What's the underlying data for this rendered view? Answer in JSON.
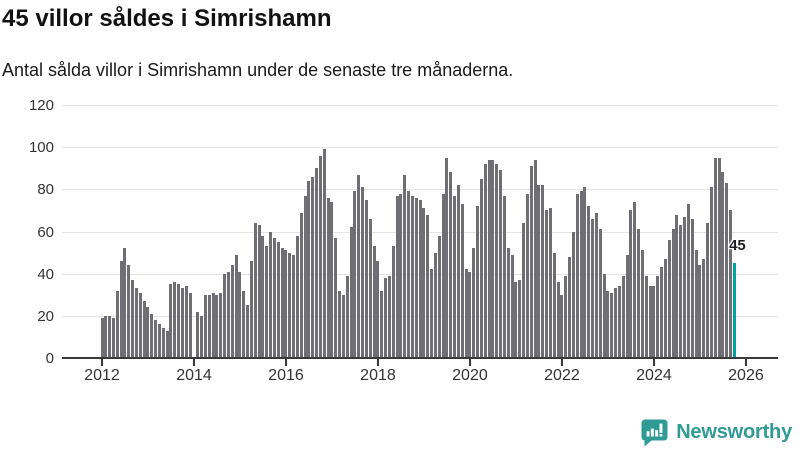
{
  "header": {
    "title": "45 villor såldes i Simrishamn",
    "subtitle": "Antal sålda villor i Simrishamn under de senaste tre månaderna."
  },
  "chart_data": {
    "type": "bar",
    "title": "45 villor såldes i Simrishamn",
    "subtitle": "Antal sålda villor i Simrishamn under de senaste tre månaderna.",
    "x_unit": "month",
    "start_year": 2012,
    "start_month": 1,
    "x_tick_years": [
      2012,
      2014,
      2016,
      2018,
      2020,
      2022,
      2024,
      2026
    ],
    "y_ticks": [
      0,
      20,
      40,
      60,
      80,
      100,
      120
    ],
    "ylim": [
      0,
      120
    ],
    "grid": true,
    "bar_color": "#6f6e74",
    "highlight_color": "#00a0a6",
    "highlight_last": true,
    "last_value_label": "45",
    "values": [
      19,
      20,
      20,
      19,
      32,
      46,
      52,
      44,
      37,
      33,
      31,
      27,
      24,
      21,
      18,
      16,
      14,
      13,
      35,
      36,
      35,
      33,
      34,
      31,
      0,
      22,
      20,
      30,
      30,
      31,
      30,
      31,
      40,
      41,
      44,
      49,
      41,
      32,
      25,
      46,
      64,
      63,
      58,
      53,
      60,
      57,
      55,
      52,
      51,
      50,
      49,
      58,
      69,
      77,
      84,
      86,
      90,
      96,
      99,
      76,
      74,
      57,
      32,
      30,
      39,
      62,
      79,
      87,
      81,
      75,
      66,
      53,
      46,
      32,
      38,
      39,
      53,
      77,
      78,
      87,
      79,
      77,
      76,
      75,
      71,
      68,
      42,
      50,
      58,
      78,
      95,
      88,
      77,
      82,
      73,
      42,
      41,
      52,
      72,
      85,
      92,
      94,
      94,
      92,
      89,
      77,
      52,
      49,
      36,
      37,
      64,
      78,
      91,
      94,
      82,
      82,
      70,
      71,
      50,
      36,
      30,
      39,
      48,
      60,
      78,
      79,
      81,
      72,
      66,
      69,
      61,
      40,
      32,
      31,
      33,
      34,
      39,
      49,
      70,
      74,
      61,
      51,
      39,
      34,
      34,
      39,
      43,
      47,
      56,
      61,
      68,
      63,
      67,
      73,
      66,
      51,
      44,
      47,
      64,
      81,
      95,
      95,
      88,
      83,
      70,
      45
    ]
  },
  "footer": {
    "brand": "Newsworthy",
    "brand_color": "#2f9b95",
    "icon": "newsworthy-speech-bubble-bars-icon"
  }
}
